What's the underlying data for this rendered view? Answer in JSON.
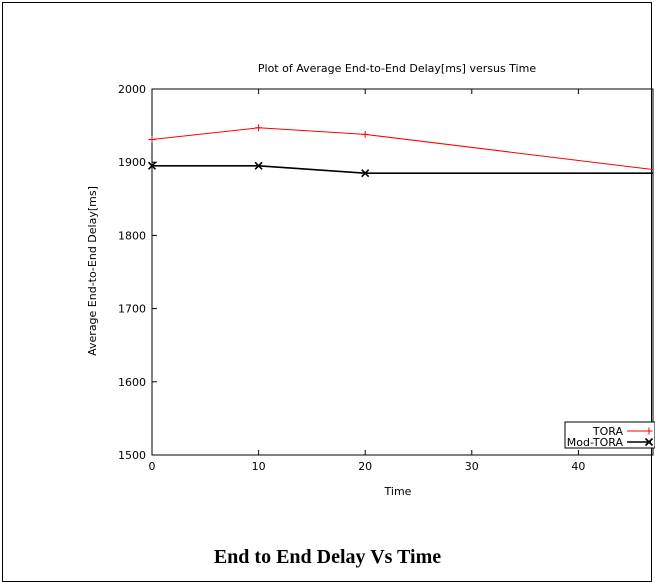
{
  "caption": "End to End Delay Vs Time",
  "chart_data": {
    "type": "line",
    "title": "Plot of Average End-to-End Delay[ms] versus Time",
    "xlabel": "Time",
    "ylabel": "Average End-to-End Delay[ms]",
    "xlim": [
      0,
      47
    ],
    "ylim": [
      1500,
      2000
    ],
    "xticks": [
      0,
      10,
      20,
      30,
      40
    ],
    "yticks": [
      1500,
      1600,
      1700,
      1800,
      1900,
      2000
    ],
    "grid": false,
    "legend_position": "bottom-right",
    "series": [
      {
        "name": "TORA",
        "color": "#ff0000",
        "marker": "plus",
        "x": [
          0,
          10,
          20,
          47
        ],
        "y": [
          1931,
          1947,
          1938,
          1890
        ]
      },
      {
        "name": "Mod-TORA",
        "color": "#000000",
        "marker": "cross",
        "x": [
          0,
          10,
          20,
          47
        ],
        "y": [
          1895,
          1895,
          1885,
          1885
        ]
      }
    ]
  }
}
